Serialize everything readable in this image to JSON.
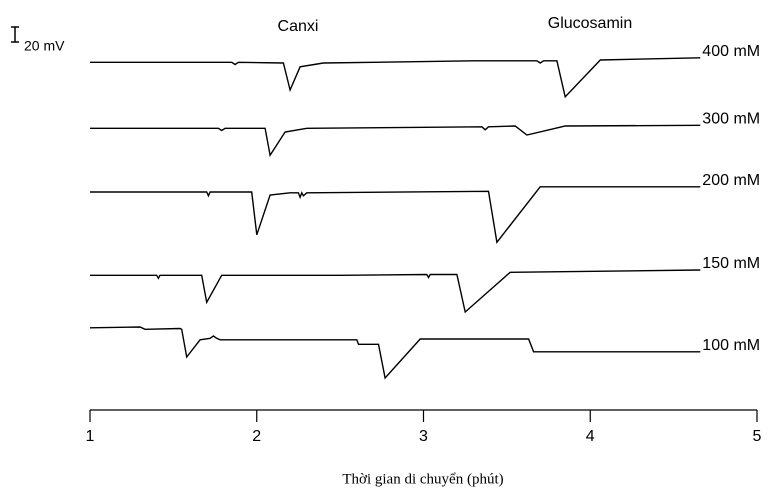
{
  "chart_data": {
    "type": "line",
    "x_label": "Thời gian di chuyển (phút)",
    "annotations": [
      "Canxi",
      "Glucosamin"
    ],
    "scale_bar": {
      "value": 20,
      "label": "20 mV"
    },
    "xlim": [
      1,
      5
    ],
    "xticks": [
      1,
      2,
      3,
      4,
      5
    ],
    "ylim": [
      0,
      500
    ],
    "series": [
      {
        "name": "400 mM",
        "color": "#000000",
        "x": [
          1.0,
          1.85,
          1.87,
          1.89,
          2.16,
          2.2,
          2.26,
          2.4,
          3.3,
          3.68,
          3.7,
          3.72,
          3.8,
          3.85,
          4.06,
          4.66
        ],
        "values": [
          457,
          457,
          454,
          457,
          456,
          420,
          451,
          456,
          459,
          459,
          456,
          459,
          459,
          411,
          460,
          463
        ]
      },
      {
        "name": "300 mM",
        "color": "#000000",
        "x": [
          1.0,
          1.77,
          1.79,
          1.81,
          2.05,
          2.08,
          2.17,
          2.3,
          3.35,
          3.37,
          3.39,
          3.55,
          3.62,
          3.85,
          4.66
        ],
        "values": [
          369,
          369,
          366,
          369,
          369,
          333,
          364,
          369,
          371,
          367,
          371,
          372,
          360,
          372,
          373
        ]
      },
      {
        "name": "200 mM",
        "color": "#000000",
        "x": [
          1.0,
          1.7,
          1.71,
          1.72,
          1.97,
          2.0,
          2.08,
          2.2,
          2.25,
          2.26,
          2.27,
          2.28,
          2.3,
          3.39,
          3.44,
          3.7,
          4.66
        ],
        "values": [
          284,
          284,
          279,
          284,
          284,
          227,
          280,
          283,
          283,
          277,
          283,
          279,
          283,
          285,
          217,
          291,
          291
        ]
      },
      {
        "name": "150 mM",
        "color": "#000000",
        "x": [
          1.0,
          1.4,
          1.41,
          1.42,
          1.67,
          1.7,
          1.79,
          2.5,
          3.02,
          3.03,
          3.04,
          3.2,
          3.25,
          3.52,
          4.66
        ],
        "values": [
          173,
          173,
          169,
          173,
          173,
          137,
          173,
          173,
          174,
          170,
          174,
          174,
          124,
          177,
          180
        ]
      },
      {
        "name": "100 mM",
        "color": "#000000",
        "x": [
          1.0,
          1.3,
          1.33,
          1.54,
          1.55,
          1.58,
          1.66,
          1.72,
          1.74,
          1.76,
          1.78,
          2.6,
          2.61,
          2.73,
          2.77,
          2.98,
          3.63,
          3.66,
          4.66
        ],
        "values": [
          103,
          104,
          101,
          102,
          101,
          64,
          87,
          89,
          92,
          89,
          87,
          87,
          81,
          81,
          36,
          88,
          88,
          71,
          71
        ]
      }
    ]
  }
}
